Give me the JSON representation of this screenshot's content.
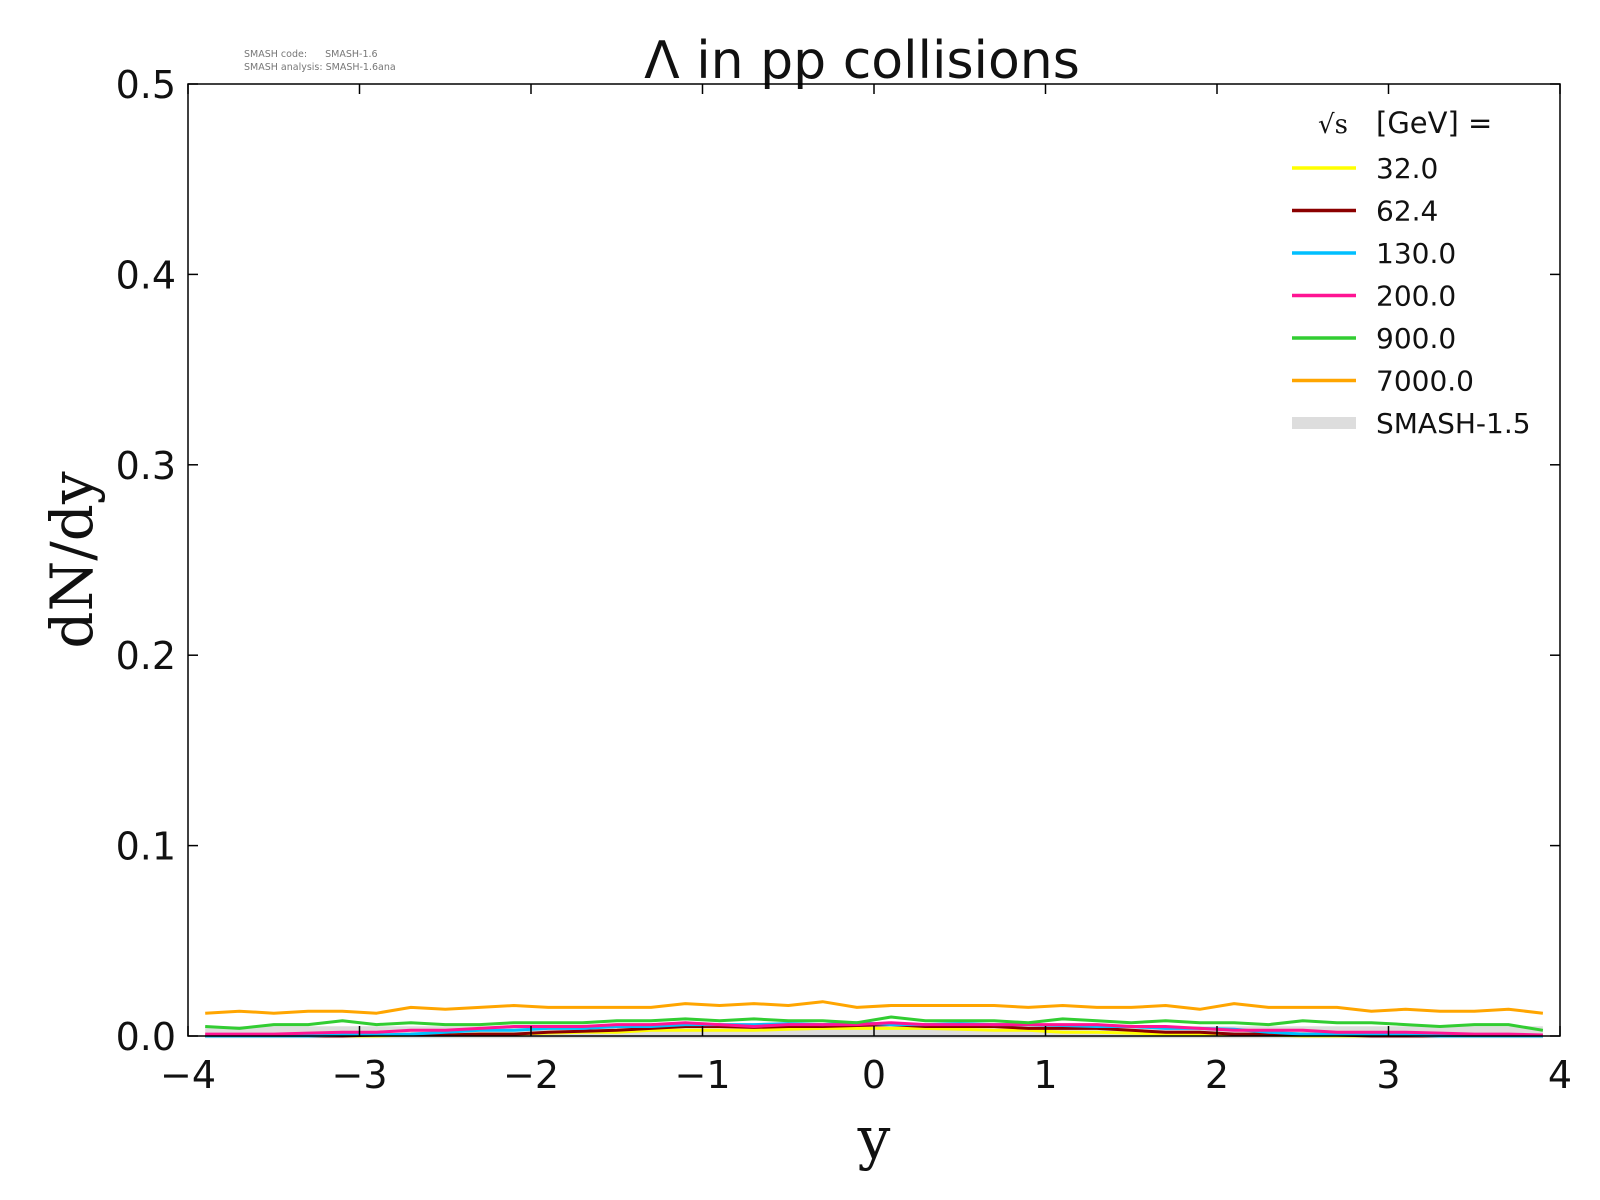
{
  "chart_data": {
    "type": "line",
    "title": "Λ in pp collisions",
    "xlabel": "y",
    "ylabel": "dN/dy",
    "xlim": [
      -4,
      4
    ],
    "ylim": [
      0.0,
      0.5
    ],
    "xticks": [
      -4,
      -3,
      -2,
      -1,
      0,
      1,
      2,
      3,
      4
    ],
    "xtick_labels": [
      "−4",
      "−3",
      "−2",
      "−1",
      "0",
      "1",
      "2",
      "3",
      "4"
    ],
    "yticks": [
      0.0,
      0.1,
      0.2,
      0.3,
      0.4,
      0.5
    ],
    "ytick_labels": [
      "0.0",
      "0.1",
      "0.2",
      "0.3",
      "0.4",
      "0.5"
    ],
    "grid": false,
    "legend_placement": "top-right",
    "legend_title": "[GeV] =",
    "legend_title_symbol": "√s",
    "meta": {
      "line1": "SMASH code:      SMASH-1.6",
      "line2": "SMASH analysis: SMASH-1.6ana"
    },
    "x": [
      -3.9,
      -3.7,
      -3.5,
      -3.3,
      -3.1,
      -2.9,
      -2.7,
      -2.5,
      -2.3,
      -2.1,
      -1.9,
      -1.7,
      -1.5,
      -1.3,
      -1.1,
      -0.9,
      -0.7,
      -0.5,
      -0.3,
      -0.1,
      0.1,
      0.3,
      0.5,
      0.7,
      0.9,
      1.1,
      1.3,
      1.5,
      1.7,
      1.9,
      2.1,
      2.3,
      2.5,
      2.7,
      2.9,
      3.1,
      3.3,
      3.5,
      3.7,
      3.9
    ],
    "series": [
      {
        "name": "SMASH-1.5",
        "color": "#dddddd",
        "width": 12,
        "values": [
          0.002,
          0.002,
          0.002,
          0.002,
          0.002,
          0.002,
          0.002,
          0.002,
          0.002,
          0.002,
          0.002,
          0.002,
          0.002,
          0.002,
          0.002,
          0.002,
          0.002,
          0.002,
          0.002,
          0.002,
          0.002,
          0.002,
          0.002,
          0.002,
          0.002,
          0.002,
          0.002,
          0.002,
          0.002,
          0.002,
          0.002,
          0.002,
          0.002,
          0.002,
          0.002,
          0.002,
          0.002,
          0.002,
          0.002,
          0.002
        ]
      },
      {
        "name": "32.0",
        "color": "#ffff00",
        "width": 3,
        "values": [
          0.0,
          0.0,
          0.0,
          0.0,
          0.0,
          0.0,
          0.0005,
          0.0005,
          0.001,
          0.001,
          0.0015,
          0.002,
          0.002,
          0.003,
          0.003,
          0.003,
          0.003,
          0.0035,
          0.004,
          0.004,
          0.004,
          0.004,
          0.0035,
          0.003,
          0.003,
          0.002,
          0.002,
          0.0015,
          0.001,
          0.001,
          0.0005,
          0.0005,
          0.0,
          0.0,
          0.0,
          0.0,
          0.0,
          0.0,
          0.0,
          0.0
        ]
      },
      {
        "name": "62.4",
        "color": "#8b0000",
        "width": 3,
        "values": [
          0.0,
          0.0,
          0.0,
          0.0,
          0.0,
          0.0005,
          0.0005,
          0.0005,
          0.001,
          0.001,
          0.002,
          0.0025,
          0.003,
          0.004,
          0.005,
          0.005,
          0.0045,
          0.005,
          0.005,
          0.0055,
          0.006,
          0.005,
          0.005,
          0.005,
          0.004,
          0.004,
          0.004,
          0.003,
          0.002,
          0.002,
          0.001,
          0.001,
          0.001,
          0.0005,
          0.0,
          0.0,
          0.0,
          0.0,
          0.0,
          0.0
        ]
      },
      {
        "name": "130.0",
        "color": "#00bfff",
        "width": 3,
        "values": [
          0.0,
          0.0,
          0.0,
          0.0,
          0.0005,
          0.0005,
          0.001,
          0.002,
          0.003,
          0.003,
          0.004,
          0.004,
          0.005,
          0.005,
          0.006,
          0.006,
          0.006,
          0.0065,
          0.006,
          0.007,
          0.006,
          0.006,
          0.0065,
          0.006,
          0.006,
          0.0055,
          0.005,
          0.005,
          0.004,
          0.004,
          0.0035,
          0.002,
          0.001,
          0.001,
          0.0005,
          0.0005,
          0.0,
          0.0,
          0.0,
          0.0
        ]
      },
      {
        "name": "200.0",
        "color": "#ff1493",
        "width": 3,
        "values": [
          0.001,
          0.001,
          0.001,
          0.0015,
          0.002,
          0.002,
          0.003,
          0.003,
          0.004,
          0.005,
          0.005,
          0.005,
          0.006,
          0.006,
          0.007,
          0.006,
          0.005,
          0.006,
          0.006,
          0.006,
          0.007,
          0.006,
          0.006,
          0.006,
          0.006,
          0.006,
          0.006,
          0.005,
          0.005,
          0.004,
          0.003,
          0.003,
          0.003,
          0.002,
          0.002,
          0.002,
          0.0015,
          0.001,
          0.001,
          0.0005
        ]
      },
      {
        "name": "900.0",
        "color": "#32cd32",
        "width": 3,
        "values": [
          0.005,
          0.004,
          0.006,
          0.006,
          0.008,
          0.006,
          0.007,
          0.006,
          0.006,
          0.007,
          0.007,
          0.007,
          0.008,
          0.008,
          0.009,
          0.008,
          0.009,
          0.008,
          0.008,
          0.007,
          0.01,
          0.008,
          0.008,
          0.008,
          0.007,
          0.009,
          0.008,
          0.007,
          0.008,
          0.007,
          0.007,
          0.006,
          0.008,
          0.007,
          0.007,
          0.006,
          0.005,
          0.006,
          0.006,
          0.003
        ]
      },
      {
        "name": "7000.0",
        "color": "#ffa500",
        "width": 3,
        "values": [
          0.012,
          0.013,
          0.012,
          0.013,
          0.013,
          0.012,
          0.015,
          0.014,
          0.015,
          0.016,
          0.015,
          0.015,
          0.015,
          0.015,
          0.017,
          0.016,
          0.017,
          0.016,
          0.018,
          0.015,
          0.016,
          0.016,
          0.016,
          0.016,
          0.015,
          0.016,
          0.015,
          0.015,
          0.016,
          0.014,
          0.017,
          0.015,
          0.015,
          0.015,
          0.013,
          0.014,
          0.013,
          0.013,
          0.014,
          0.012
        ]
      }
    ],
    "legend": [
      {
        "label": "32.0",
        "color": "#ffff00"
      },
      {
        "label": "62.4",
        "color": "#8b0000"
      },
      {
        "label": "130.0",
        "color": "#00bfff"
      },
      {
        "label": "200.0",
        "color": "#ff1493"
      },
      {
        "label": "900.0",
        "color": "#32cd32"
      },
      {
        "label": "7000.0",
        "color": "#ffa500"
      },
      {
        "label": "SMASH-1.5",
        "color": "#dddddd"
      }
    ]
  }
}
